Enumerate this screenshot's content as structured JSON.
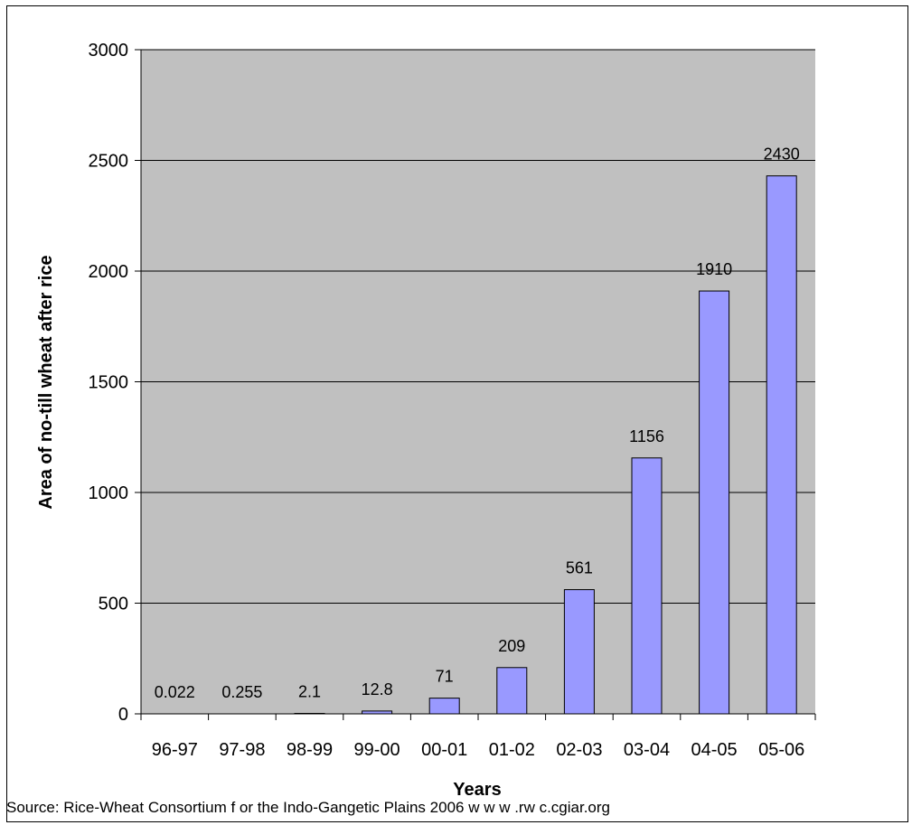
{
  "chart_data": {
    "type": "bar",
    "title": "",
    "xlabel": "Years",
    "ylabel": "Area of no-till wheat after rice",
    "categories": [
      "96-97",
      "97-98",
      "98-99",
      "99-00",
      "00-01",
      "01-02",
      "02-03",
      "03-04",
      "04-05",
      "05-06"
    ],
    "values": [
      0.022,
      0.255,
      2.1,
      12.8,
      71,
      209,
      561,
      1156,
      1910,
      2430
    ],
    "value_labels": [
      "0.022",
      "0.255",
      "2.1",
      "12.8",
      "71",
      "209",
      "561",
      "1156",
      "1910",
      "2430"
    ],
    "ylim": [
      0,
      3000
    ],
    "yticks": [
      0,
      500,
      1000,
      1500,
      2000,
      2500,
      3000
    ],
    "ytick_labels": [
      "0",
      "500",
      "1000",
      "1500",
      "2000",
      "2500",
      "3000"
    ],
    "grid": true,
    "legend": "none",
    "plot_background": "#c0c0c0",
    "bar_color": "#9999ff",
    "bar_edge_color": "#000000"
  },
  "source_note": "Source: Rice-Wheat Consortium f or the Indo-Gangetic Plains 2006 w w w .rw c.cgiar.org"
}
